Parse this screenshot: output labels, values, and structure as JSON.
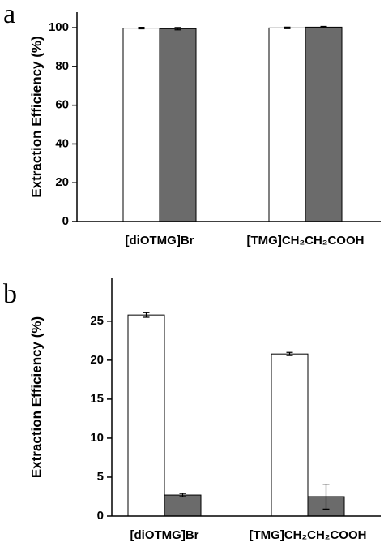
{
  "chart_data": [
    {
      "type": "bar",
      "panel_label": "a",
      "ylabel": "Extraction Efficiency (%)",
      "categories": [
        "[diOTMG]Br",
        "[TMG]CH₂CH₂COOH"
      ],
      "series": [
        {
          "color": "#ffffff",
          "values": [
            99.8,
            99.9
          ],
          "errors": [
            0.4,
            0.4
          ]
        },
        {
          "color": "#6b6b6b",
          "values": [
            99.5,
            100.3
          ],
          "errors": [
            0.6,
            0.4
          ]
        }
      ],
      "ylim": [
        0,
        108
      ],
      "yticks": [
        0,
        20,
        40,
        60,
        80,
        100
      ]
    },
    {
      "type": "bar",
      "panel_label": "b",
      "ylabel": "Extraction Efficiency (%)",
      "categories": [
        "[diOTMG]Br",
        "[TMG]CH₂CH₂COOH"
      ],
      "series": [
        {
          "color": "#ffffff",
          "values": [
            25.8,
            20.8
          ],
          "errors": [
            0.3,
            0.2
          ]
        },
        {
          "color": "#6b6b6b",
          "values": [
            2.7,
            2.5
          ],
          "errors": [
            0.2,
            1.6
          ]
        }
      ],
      "ylim": [
        0,
        30.5
      ],
      "yticks": [
        0,
        5,
        10,
        15,
        20,
        25
      ]
    }
  ]
}
